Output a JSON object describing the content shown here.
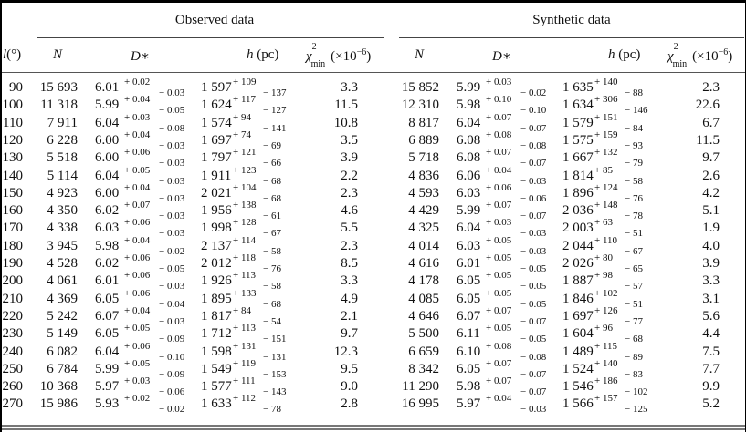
{
  "table": {
    "groups": {
      "observed": "Observed data",
      "synthetic": "Synthetic data"
    },
    "columns": {
      "l": "l(°)",
      "N": "N",
      "D": "D∗",
      "h": "h (pc)",
      "chi": "χ²min (×10⁻⁶)"
    },
    "rows": [
      {
        "l": "90",
        "obs": {
          "N": "15 693",
          "D": "6.01",
          "Dp": "+ 0.02",
          "Dm": "− 0.03",
          "h": "1 597",
          "hp": "+ 109",
          "hm": "− 137",
          "chi": "3.3"
        },
        "syn": {
          "N": "15 852",
          "D": "5.99",
          "Dp": "+ 0.03",
          "Dm": "− 0.02",
          "h": "1 635",
          "hp": "+ 140",
          "hm": "− 88",
          "chi": "2.3"
        }
      },
      {
        "l": "100",
        "obs": {
          "N": "11 318",
          "D": "5.99",
          "Dp": "+ 0.04",
          "Dm": "− 0.05",
          "h": "1 624",
          "hp": "+ 117",
          "hm": "− 127",
          "chi": "11.5"
        },
        "syn": {
          "N": "12 310",
          "D": "5.98",
          "Dp": "+ 0.10",
          "Dm": "− 0.10",
          "h": "1 634",
          "hp": "+ 306",
          "hm": "− 146",
          "chi": "22.6"
        }
      },
      {
        "l": "110",
        "obs": {
          "N": "7 911",
          "D": "6.04",
          "Dp": "+ 0.03",
          "Dm": "− 0.08",
          "h": "1 574",
          "hp": "+ 94",
          "hm": "− 141",
          "chi": "10.8"
        },
        "syn": {
          "N": "8 817",
          "D": "6.04",
          "Dp": "+ 0.07",
          "Dm": "− 0.07",
          "h": "1 579",
          "hp": "+ 151",
          "hm": "− 84",
          "chi": "6.7"
        }
      },
      {
        "l": "120",
        "obs": {
          "N": "6 228",
          "D": "6.00",
          "Dp": "+ 0.04",
          "Dm": "− 0.03",
          "h": "1 697",
          "hp": "+ 74",
          "hm": "− 69",
          "chi": "3.5"
        },
        "syn": {
          "N": "6 889",
          "D": "6.08",
          "Dp": "+ 0.08",
          "Dm": "− 0.08",
          "h": "1 575",
          "hp": "+ 159",
          "hm": "− 93",
          "chi": "11.5"
        }
      },
      {
        "l": "130",
        "obs": {
          "N": "5 518",
          "D": "6.00",
          "Dp": "+ 0.06",
          "Dm": "− 0.03",
          "h": "1 797",
          "hp": "+ 121",
          "hm": "− 66",
          "chi": "3.9"
        },
        "syn": {
          "N": "5 718",
          "D": "6.08",
          "Dp": "+ 0.07",
          "Dm": "− 0.07",
          "h": "1 667",
          "hp": "+ 132",
          "hm": "− 79",
          "chi": "9.7"
        }
      },
      {
        "l": "140",
        "obs": {
          "N": "5 114",
          "D": "6.04",
          "Dp": "+ 0.05",
          "Dm": "− 0.03",
          "h": "1 911",
          "hp": "+ 123",
          "hm": "− 68",
          "chi": "2.2"
        },
        "syn": {
          "N": "4 836",
          "D": "6.06",
          "Dp": "+ 0.04",
          "Dm": "− 0.03",
          "h": "1 814",
          "hp": "+ 85",
          "hm": "− 58",
          "chi": "2.6"
        }
      },
      {
        "l": "150",
        "obs": {
          "N": "4 923",
          "D": "6.00",
          "Dp": "+ 0.04",
          "Dm": "− 0.03",
          "h": "2 021",
          "hp": "+ 104",
          "hm": "− 68",
          "chi": "2.3"
        },
        "syn": {
          "N": "4 593",
          "D": "6.03",
          "Dp": "+ 0.06",
          "Dm": "− 0.06",
          "h": "1 896",
          "hp": "+ 124",
          "hm": "− 76",
          "chi": "4.2"
        }
      },
      {
        "l": "160",
        "obs": {
          "N": "4 350",
          "D": "6.02",
          "Dp": "+ 0.07",
          "Dm": "− 0.03",
          "h": "1 956",
          "hp": "+ 138",
          "hm": "− 61",
          "chi": "4.6"
        },
        "syn": {
          "N": "4 429",
          "D": "5.99",
          "Dp": "+ 0.07",
          "Dm": "− 0.07",
          "h": "2 036",
          "hp": "+ 148",
          "hm": "− 78",
          "chi": "5.1"
        }
      },
      {
        "l": "170",
        "obs": {
          "N": "4 338",
          "D": "6.03",
          "Dp": "+ 0.06",
          "Dm": "− 0.03",
          "h": "1 998",
          "hp": "+ 128",
          "hm": "− 67",
          "chi": "5.5"
        },
        "syn": {
          "N": "4 325",
          "D": "6.04",
          "Dp": "+ 0.03",
          "Dm": "− 0.03",
          "h": "2 003",
          "hp": "+ 63",
          "hm": "− 51",
          "chi": "1.9"
        }
      },
      {
        "l": "180",
        "obs": {
          "N": "3 945",
          "D": "5.98",
          "Dp": "+ 0.04",
          "Dm": "− 0.02",
          "h": "2 137",
          "hp": "+ 114",
          "hm": "− 58",
          "chi": "2.3"
        },
        "syn": {
          "N": "4 014",
          "D": "6.03",
          "Dp": "+ 0.05",
          "Dm": "− 0.03",
          "h": "2 044",
          "hp": "+ 110",
          "hm": "− 67",
          "chi": "4.0"
        }
      },
      {
        "l": "190",
        "obs": {
          "N": "4 528",
          "D": "6.02",
          "Dp": "+ 0.06",
          "Dm": "− 0.05",
          "h": "2 012",
          "hp": "+ 118",
          "hm": "− 76",
          "chi": "8.5"
        },
        "syn": {
          "N": "4 616",
          "D": "6.01",
          "Dp": "+ 0.05",
          "Dm": "− 0.05",
          "h": "2 026",
          "hp": "+ 80",
          "hm": "− 65",
          "chi": "3.9"
        }
      },
      {
        "l": "200",
        "obs": {
          "N": "4 061",
          "D": "6.01",
          "Dp": "+ 0.06",
          "Dm": "− 0.03",
          "h": "1 926",
          "hp": "+ 113",
          "hm": "− 58",
          "chi": "3.3"
        },
        "syn": {
          "N": "4 178",
          "D": "6.05",
          "Dp": "+ 0.05",
          "Dm": "− 0.05",
          "h": "1 887",
          "hp": "+ 98",
          "hm": "− 57",
          "chi": "3.3"
        }
      },
      {
        "l": "210",
        "obs": {
          "N": "4 369",
          "D": "6.05",
          "Dp": "+ 0.06",
          "Dm": "− 0.04",
          "h": "1 895",
          "hp": "+ 133",
          "hm": "− 68",
          "chi": "4.9"
        },
        "syn": {
          "N": "4 085",
          "D": "6.05",
          "Dp": "+ 0.05",
          "Dm": "− 0.05",
          "h": "1 846",
          "hp": "+ 102",
          "hm": "− 51",
          "chi": "3.1"
        }
      },
      {
        "l": "220",
        "obs": {
          "N": "5 242",
          "D": "6.07",
          "Dp": "+ 0.04",
          "Dm": "− 0.03",
          "h": "1 817",
          "hp": "+ 84",
          "hm": "− 54",
          "chi": "2.1"
        },
        "syn": {
          "N": "4 646",
          "D": "6.07",
          "Dp": "+ 0.07",
          "Dm": "− 0.07",
          "h": "1 697",
          "hp": "+ 126",
          "hm": "− 77",
          "chi": "5.6"
        }
      },
      {
        "l": "230",
        "obs": {
          "N": "5 149",
          "D": "6.05",
          "Dp": "+ 0.05",
          "Dm": "− 0.09",
          "h": "1 712",
          "hp": "+ 113",
          "hm": "− 151",
          "chi": "9.7"
        },
        "syn": {
          "N": "5 500",
          "D": "6.11",
          "Dp": "+ 0.05",
          "Dm": "− 0.05",
          "h": "1 604",
          "hp": "+ 96",
          "hm": "− 68",
          "chi": "4.4"
        }
      },
      {
        "l": "240",
        "obs": {
          "N": "6 082",
          "D": "6.04",
          "Dp": "+ 0.06",
          "Dm": "− 0.10",
          "h": "1 598",
          "hp": "+ 131",
          "hm": "− 131",
          "chi": "12.3"
        },
        "syn": {
          "N": "6 659",
          "D": "6.10",
          "Dp": "+ 0.08",
          "Dm": "− 0.08",
          "h": "1 489",
          "hp": "+ 115",
          "hm": "− 89",
          "chi": "7.5"
        }
      },
      {
        "l": "250",
        "obs": {
          "N": "6 784",
          "D": "5.99",
          "Dp": "+ 0.05",
          "Dm": "− 0.09",
          "h": "1 549",
          "hp": "+ 119",
          "hm": "− 153",
          "chi": "9.5"
        },
        "syn": {
          "N": "8 342",
          "D": "6.05",
          "Dp": "+ 0.07",
          "Dm": "− 0.07",
          "h": "1 524",
          "hp": "+ 140",
          "hm": "− 83",
          "chi": "7.7"
        }
      },
      {
        "l": "260",
        "obs": {
          "N": "10 368",
          "D": "5.97",
          "Dp": "+ 0.03",
          "Dm": "− 0.06",
          "h": "1 577",
          "hp": "+ 111",
          "hm": "− 143",
          "chi": "9.0"
        },
        "syn": {
          "N": "11 290",
          "D": "5.98",
          "Dp": "+ 0.07",
          "Dm": "− 0.07",
          "h": "1 546",
          "hp": "+ 186",
          "hm": "− 102",
          "chi": "9.9"
        }
      },
      {
        "l": "270",
        "obs": {
          "N": "15 986",
          "D": "5.93",
          "Dp": "+ 0.02",
          "Dm": "− 0.02",
          "h": "1 633",
          "hp": "+ 112",
          "hm": "− 78",
          "chi": "2.8"
        },
        "syn": {
          "N": "16 995",
          "D": "5.97",
          "Dp": "+ 0.04",
          "Dm": "− 0.03",
          "h": "1 566",
          "hp": "+ 157",
          "hm": "− 125",
          "chi": "5.2"
        }
      }
    ]
  }
}
